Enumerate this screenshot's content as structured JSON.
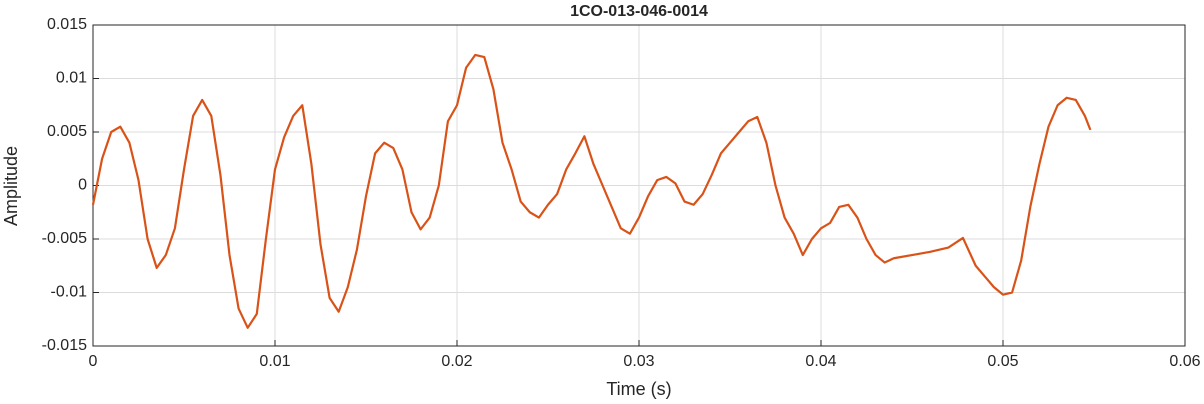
{
  "chart_data": {
    "type": "line",
    "title": "1CO-013-046-0014",
    "x_label": "Time (s)",
    "y_label": "Amplitude",
    "xlim": [
      0,
      0.06
    ],
    "xticks": [
      0,
      0.01,
      0.02,
      0.03,
      0.04,
      0.05,
      0.06
    ],
    "ylim": [
      -0.015,
      0.015
    ],
    "yticks": [
      -0.015,
      -0.01,
      -0.005,
      0,
      0.005,
      0.01,
      0.015
    ],
    "grid": true,
    "x": [
      0,
      0.0005,
      0.001,
      0.0015,
      0.002,
      0.0025,
      0.003,
      0.0035,
      0.004,
      0.0045,
      0.005,
      0.0055,
      0.006,
      0.0065,
      0.007,
      0.0075,
      0.008,
      0.0085,
      0.009,
      0.0095,
      0.01,
      0.0105,
      0.011,
      0.0115,
      0.012,
      0.0125,
      0.013,
      0.0135,
      0.014,
      0.0145,
      0.015,
      0.0155,
      0.016,
      0.0165,
      0.017,
      0.0175,
      0.018,
      0.0185,
      0.019,
      0.0195,
      0.02,
      0.0205,
      0.021,
      0.0215,
      0.022,
      0.0225,
      0.023,
      0.0235,
      0.024,
      0.0245,
      0.025,
      0.0255,
      0.026,
      0.0265,
      0.027,
      0.0275,
      0.028,
      0.0285,
      0.029,
      0.0295,
      0.03,
      0.0305,
      0.031,
      0.0315,
      0.032,
      0.0325,
      0.033,
      0.0335,
      0.034,
      0.0345,
      0.035,
      0.0355,
      0.036,
      0.0365,
      0.037,
      0.0375,
      0.038,
      0.0385,
      0.039,
      0.0395,
      0.04,
      0.0405,
      0.041,
      0.0415,
      0.042,
      0.0425,
      0.043,
      0.0435,
      0.044,
      0.045,
      0.046,
      0.047,
      0.0478,
      0.0485,
      0.049,
      0.0495,
      0.05,
      0.0505,
      0.051,
      0.0515,
      0.052,
      0.0525,
      0.053,
      0.0535,
      0.054,
      0.0545,
      0.0548
    ],
    "series": [
      {
        "name": "signal",
        "color": "#d95319",
        "values": [
          -0.0018,
          0.0025,
          0.005,
          0.0055,
          0.004,
          0.0005,
          -0.005,
          -0.0077,
          -0.0065,
          -0.004,
          0.0015,
          0.0065,
          0.008,
          0.0065,
          0.001,
          -0.0065,
          -0.0115,
          -0.0133,
          -0.012,
          -0.005,
          0.0015,
          0.0045,
          0.0065,
          0.0075,
          0.002,
          -0.0055,
          -0.0105,
          -0.0118,
          -0.0095,
          -0.006,
          -0.001,
          0.003,
          0.004,
          0.0035,
          0.0015,
          -0.0025,
          -0.0041,
          -0.003,
          0,
          0.006,
          0.0075,
          0.011,
          0.0122,
          0.012,
          0.009,
          0.004,
          0.0015,
          -0.0015,
          -0.0025,
          -0.003,
          -0.0018,
          -0.0008,
          0.0015,
          0.003,
          0.0046,
          0.002,
          0,
          -0.002,
          -0.004,
          -0.0045,
          -0.003,
          -0.001,
          0.0005,
          0.0008,
          0.0002,
          -0.0015,
          -0.0018,
          -0.0008,
          0.001,
          0.003,
          0.004,
          0.005,
          0.006,
          0.0064,
          0.004,
          0,
          -0.003,
          -0.0045,
          -0.0065,
          -0.005,
          -0.004,
          -0.0035,
          -0.002,
          -0.0018,
          -0.003,
          -0.005,
          -0.0065,
          -0.0072,
          -0.0068,
          -0.0065,
          -0.0062,
          -0.0058,
          -0.0049,
          -0.0075,
          -0.0085,
          -0.0095,
          -0.0102,
          -0.01,
          -0.007,
          -0.002,
          0.002,
          0.0055,
          0.0075,
          0.0082,
          0.008,
          0.0065,
          0.0052
        ]
      }
    ]
  }
}
